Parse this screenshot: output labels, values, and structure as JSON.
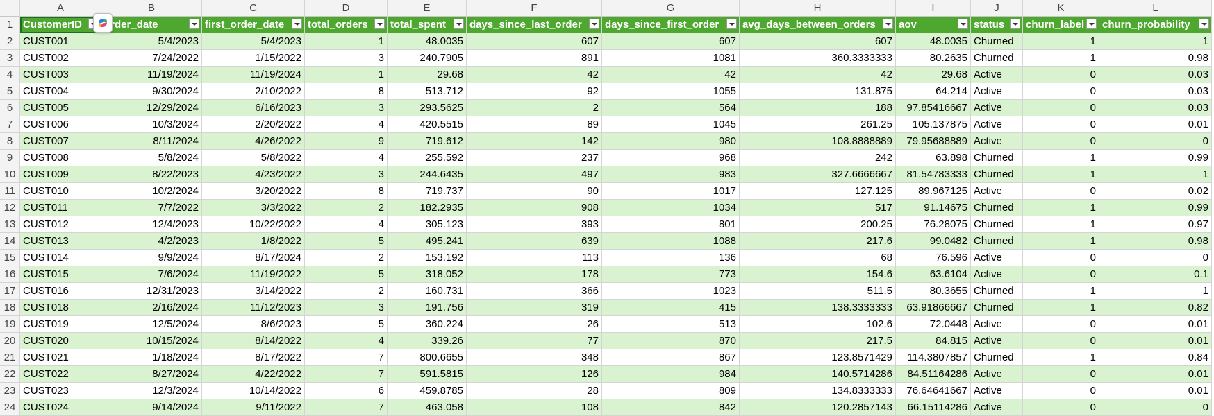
{
  "column_letters": [
    "A",
    "B",
    "C",
    "D",
    "E",
    "F",
    "G",
    "H",
    "I",
    "J",
    "K",
    "L"
  ],
  "headers": [
    "CustomerID",
    "order_date",
    "first_order_date",
    "total_orders",
    "total_spent",
    "days_since_last_order",
    "days_since_first_order",
    "avg_days_between_orders",
    "aov",
    "status",
    "churn_label",
    "churn_probability"
  ],
  "rows": [
    {
      "num": "2",
      "cells": [
        "CUST001",
        "5/4/2023",
        "5/4/2023",
        "1",
        "48.0035",
        "607",
        "607",
        "607",
        "48.0035",
        "Churned",
        "1",
        "1"
      ]
    },
    {
      "num": "3",
      "cells": [
        "CUST002",
        "7/24/2022",
        "1/15/2022",
        "3",
        "240.7905",
        "891",
        "1081",
        "360.3333333",
        "80.2635",
        "Churned",
        "1",
        "0.98"
      ]
    },
    {
      "num": "4",
      "cells": [
        "CUST003",
        "11/19/2024",
        "11/19/2024",
        "1",
        "29.68",
        "42",
        "42",
        "42",
        "29.68",
        "Active",
        "0",
        "0.03"
      ]
    },
    {
      "num": "5",
      "cells": [
        "CUST004",
        "9/30/2024",
        "2/10/2022",
        "8",
        "513.712",
        "92",
        "1055",
        "131.875",
        "64.214",
        "Active",
        "0",
        "0.03"
      ]
    },
    {
      "num": "6",
      "cells": [
        "CUST005",
        "12/29/2024",
        "6/16/2023",
        "3",
        "293.5625",
        "2",
        "564",
        "188",
        "97.85416667",
        "Active",
        "0",
        "0.03"
      ]
    },
    {
      "num": "7",
      "cells": [
        "CUST006",
        "10/3/2024",
        "2/20/2022",
        "4",
        "420.5515",
        "89",
        "1045",
        "261.25",
        "105.137875",
        "Active",
        "0",
        "0.01"
      ]
    },
    {
      "num": "8",
      "cells": [
        "CUST007",
        "8/11/2024",
        "4/26/2022",
        "9",
        "719.612",
        "142",
        "980",
        "108.8888889",
        "79.95688889",
        "Active",
        "0",
        "0"
      ]
    },
    {
      "num": "9",
      "cells": [
        "CUST008",
        "5/8/2024",
        "5/8/2022",
        "4",
        "255.592",
        "237",
        "968",
        "242",
        "63.898",
        "Churned",
        "1",
        "0.99"
      ]
    },
    {
      "num": "10",
      "cells": [
        "CUST009",
        "8/22/2023",
        "4/23/2022",
        "3",
        "244.6435",
        "497",
        "983",
        "327.6666667",
        "81.54783333",
        "Churned",
        "1",
        "1"
      ]
    },
    {
      "num": "11",
      "cells": [
        "CUST010",
        "10/2/2024",
        "3/20/2022",
        "8",
        "719.737",
        "90",
        "1017",
        "127.125",
        "89.967125",
        "Active",
        "0",
        "0.02"
      ]
    },
    {
      "num": "12",
      "cells": [
        "CUST011",
        "7/7/2022",
        "3/3/2022",
        "2",
        "182.2935",
        "908",
        "1034",
        "517",
        "91.14675",
        "Churned",
        "1",
        "0.99"
      ]
    },
    {
      "num": "13",
      "cells": [
        "CUST012",
        "12/4/2023",
        "10/22/2022",
        "4",
        "305.123",
        "393",
        "801",
        "200.25",
        "76.28075",
        "Churned",
        "1",
        "0.97"
      ]
    },
    {
      "num": "14",
      "cells": [
        "CUST013",
        "4/2/2023",
        "1/8/2022",
        "5",
        "495.241",
        "639",
        "1088",
        "217.6",
        "99.0482",
        "Churned",
        "1",
        "0.98"
      ]
    },
    {
      "num": "15",
      "cells": [
        "CUST014",
        "9/9/2024",
        "8/17/2024",
        "2",
        "153.192",
        "113",
        "136",
        "68",
        "76.596",
        "Active",
        "0",
        "0"
      ]
    },
    {
      "num": "16",
      "cells": [
        "CUST015",
        "7/6/2024",
        "11/19/2022",
        "5",
        "318.052",
        "178",
        "773",
        "154.6",
        "63.6104",
        "Active",
        "0",
        "0.1"
      ]
    },
    {
      "num": "17",
      "cells": [
        "CUST016",
        "12/31/2023",
        "3/14/2022",
        "2",
        "160.731",
        "366",
        "1023",
        "511.5",
        "80.3655",
        "Churned",
        "1",
        "1"
      ]
    },
    {
      "num": "18",
      "cells": [
        "CUST018",
        "2/16/2024",
        "11/12/2023",
        "3",
        "191.756",
        "319",
        "415",
        "138.3333333",
        "63.91866667",
        "Churned",
        "1",
        "0.82"
      ]
    },
    {
      "num": "19",
      "cells": [
        "CUST019",
        "12/5/2024",
        "8/6/2023",
        "5",
        "360.224",
        "26",
        "513",
        "102.6",
        "72.0448",
        "Active",
        "0",
        "0.01"
      ]
    },
    {
      "num": "20",
      "cells": [
        "CUST020",
        "10/15/2024",
        "8/14/2022",
        "4",
        "339.26",
        "77",
        "870",
        "217.5",
        "84.815",
        "Active",
        "0",
        "0.01"
      ]
    },
    {
      "num": "21",
      "cells": [
        "CUST021",
        "1/18/2024",
        "8/17/2022",
        "7",
        "800.6655",
        "348",
        "867",
        "123.8571429",
        "114.3807857",
        "Churned",
        "1",
        "0.84"
      ]
    },
    {
      "num": "22",
      "cells": [
        "CUST022",
        "8/27/2024",
        "4/22/2022",
        "7",
        "591.5815",
        "126",
        "984",
        "140.5714286",
        "84.51164286",
        "Active",
        "0",
        "0.01"
      ]
    },
    {
      "num": "23",
      "cells": [
        "CUST023",
        "12/3/2024",
        "10/14/2022",
        "6",
        "459.8785",
        "28",
        "809",
        "134.8333333",
        "76.64641667",
        "Active",
        "0",
        "0.01"
      ]
    },
    {
      "num": "24",
      "cells": [
        "CUST024",
        "9/14/2024",
        "9/11/2022",
        "7",
        "463.058",
        "108",
        "842",
        "120.2857143",
        "66.15114286",
        "Active",
        "0",
        "0"
      ]
    }
  ]
}
